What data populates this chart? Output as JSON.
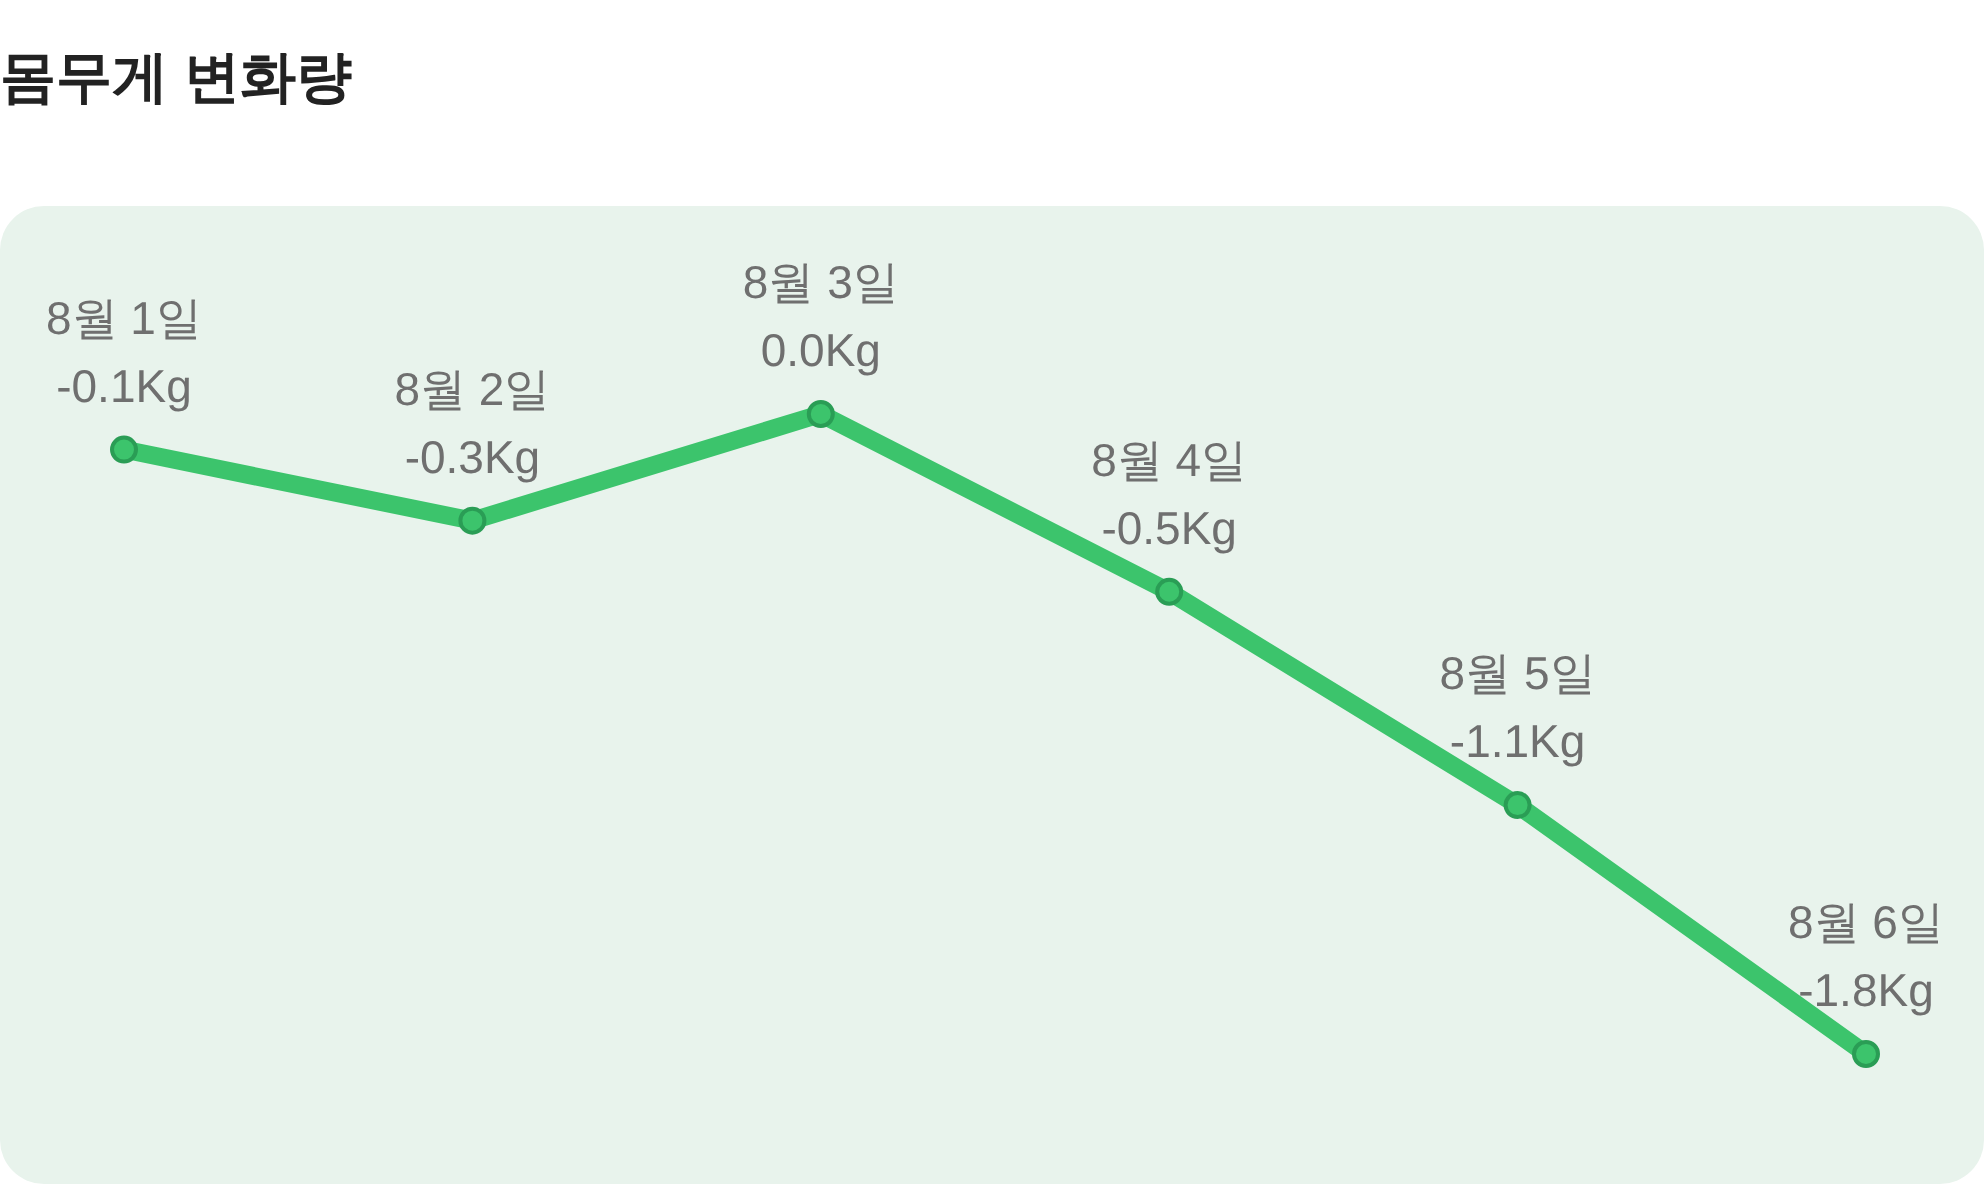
{
  "chart_data": {
    "type": "line",
    "title": "몸무게 변화량",
    "categories": [
      "8월 1일",
      "8월 2일",
      "8월 3일",
      "8월 4일",
      "8월 5일",
      "8월 6일"
    ],
    "values": [
      -0.1,
      -0.3,
      0.0,
      -0.5,
      -1.1,
      -1.8
    ],
    "value_labels": [
      "-0.1Kg",
      "-0.3Kg",
      "0.0Kg",
      "-0.5Kg",
      "-1.1Kg",
      "-1.8Kg"
    ],
    "color": "#3cc46c",
    "marker": "circle"
  }
}
